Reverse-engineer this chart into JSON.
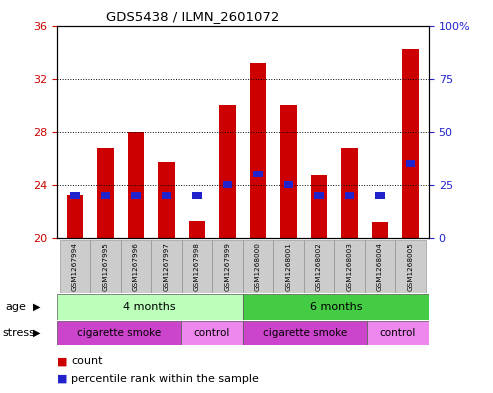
{
  "title": "GDS5438 / ILMN_2601072",
  "samples": [
    "GSM1267994",
    "GSM1267995",
    "GSM1267996",
    "GSM1267997",
    "GSM1267998",
    "GSM1267999",
    "GSM1268000",
    "GSM1268001",
    "GSM1268002",
    "GSM1268003",
    "GSM1268004",
    "GSM1268005"
  ],
  "count_values": [
    23.2,
    26.8,
    28.0,
    25.7,
    21.3,
    30.0,
    33.2,
    30.0,
    24.7,
    26.8,
    21.2,
    34.2
  ],
  "percentile_values": [
    20,
    20,
    20,
    20,
    20,
    25,
    30,
    25,
    20,
    20,
    20,
    35
  ],
  "count_base": 20.0,
  "bar_color": "#cc0000",
  "blue_color": "#2222cc",
  "ylim_left": [
    20,
    36
  ],
  "yticks_left": [
    20,
    24,
    28,
    32,
    36
  ],
  "ylim_right": [
    0,
    100
  ],
  "yticks_right": [
    0,
    25,
    50,
    75,
    100
  ],
  "ytick_labels_right": [
    "0",
    "25",
    "50",
    "75",
    "100%"
  ],
  "ylabel_left_color": "#cc0000",
  "ylabel_right_color": "#2222cc",
  "age_groups": [
    {
      "label": "4 months",
      "start": 0,
      "end": 6,
      "color": "#bbffbb"
    },
    {
      "label": "6 months",
      "start": 6,
      "end": 12,
      "color": "#44cc44"
    }
  ],
  "stress_groups": [
    {
      "label": "cigarette smoke",
      "start": 0,
      "end": 4,
      "color": "#cc44cc"
    },
    {
      "label": "control",
      "start": 4,
      "end": 6,
      "color": "#ee88ee"
    },
    {
      "label": "cigarette smoke",
      "start": 6,
      "end": 10,
      "color": "#cc44cc"
    },
    {
      "label": "control",
      "start": 10,
      "end": 12,
      "color": "#ee88ee"
    }
  ],
  "bg_color": "#ffffff",
  "tick_bg_color": "#cccccc"
}
